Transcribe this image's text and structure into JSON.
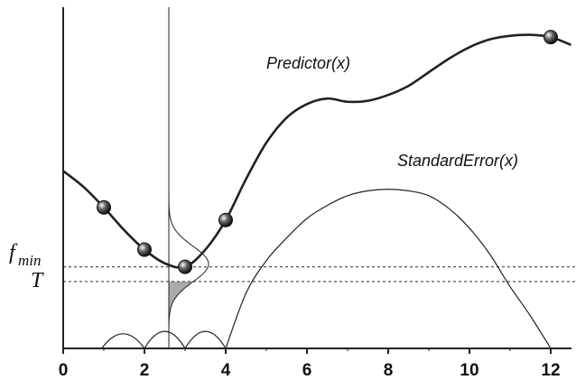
{
  "chart_data": {
    "type": "line",
    "title": "",
    "xlabel": "",
    "ylabel": "",
    "xlim": [
      0,
      12.5
    ],
    "ylim": [
      0,
      1
    ],
    "x_ticks": [
      "0",
      "2",
      "4",
      "6",
      "8",
      "10",
      "12"
    ],
    "x_tick_values": [
      0,
      2,
      4,
      6,
      8,
      10,
      12
    ],
    "grid": false,
    "series": [
      {
        "name": "Predictor(x)",
        "x": [
          0,
          0.5,
          1,
          1.5,
          2,
          2.5,
          3,
          3.5,
          4,
          4.5,
          5,
          5.5,
          6,
          6.5,
          7,
          7.5,
          8,
          8.5,
          9,
          9.5,
          10,
          10.5,
          11,
          11.5,
          12,
          12.5
        ],
        "values": [
          0.546,
          0.497,
          0.434,
          0.364,
          0.304,
          0.262,
          0.251,
          0.304,
          0.395,
          0.521,
          0.633,
          0.71,
          0.752,
          0.769,
          0.759,
          0.762,
          0.78,
          0.808,
          0.85,
          0.892,
          0.927,
          0.951,
          0.962,
          0.965,
          0.958,
          0.934
        ]
      },
      {
        "name": "StandardError(x)",
        "x": [
          0,
          0.5,
          1,
          1.5,
          2,
          2.5,
          3,
          3.5,
          4,
          4.5,
          5,
          5.5,
          6,
          6.5,
          7,
          7.5,
          8,
          8.5,
          9,
          9.5,
          10,
          10.5,
          11,
          11.5,
          12
        ],
        "values": [
          0,
          0.03,
          0,
          0.08,
          0,
          0.04,
          0,
          0.07,
          0,
          0.17,
          0.27,
          0.34,
          0.4,
          0.44,
          0.47,
          0.485,
          0.49,
          0.485,
          0.47,
          0.43,
          0.37,
          0.29,
          0.19,
          0.1,
          0
        ]
      }
    ],
    "sample_points": {
      "x": [
        1,
        2,
        3,
        4,
        12
      ],
      "y": [
        0.434,
        0.304,
        0.251,
        0.395,
        0.958
      ]
    },
    "reference_lines": [
      {
        "label": "f",
        "subscript": "min",
        "y": 0.251
      },
      {
        "label": "T",
        "y": 0.206
      }
    ],
    "vertical_line_x": 2.6,
    "colors": {
      "line": "#222222",
      "shade": "#aaaaaa",
      "dashed": "#555555"
    }
  }
}
